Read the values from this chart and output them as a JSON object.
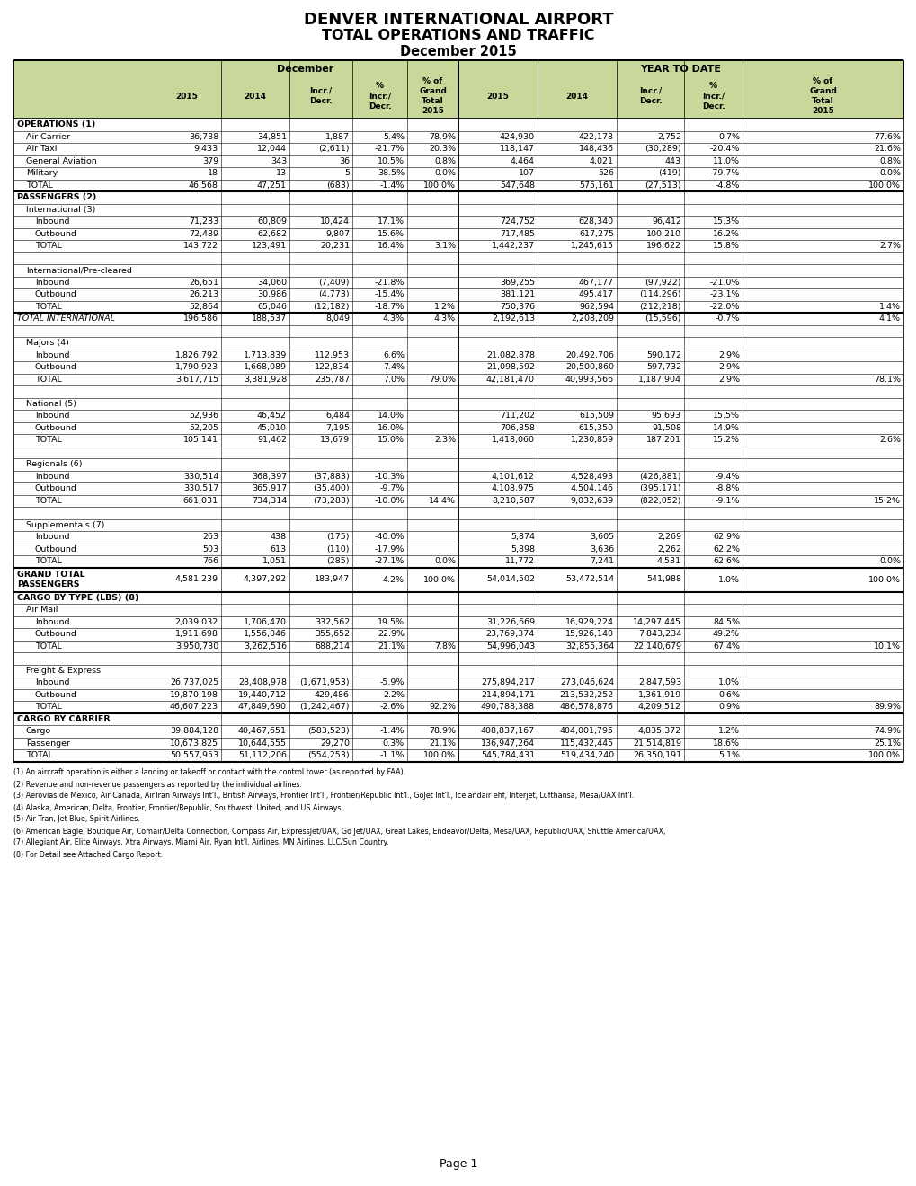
{
  "title1": "DENVER INTERNATIONAL AIRPORT",
  "title2": "TOTAL OPERATIONS AND TRAFFIC",
  "title3": "December 2015",
  "header_bg": "#c8d89a",
  "rows": [
    {
      "label": "OPERATIONS (1)",
      "indent": 0,
      "bold": true,
      "italic": false,
      "thick_above": true,
      "thick_below": false,
      "data": [
        "",
        "",
        "",
        "",
        "",
        "",
        "",
        "",
        "",
        ""
      ]
    },
    {
      "label": "Air Carrier",
      "indent": 1,
      "bold": false,
      "italic": false,
      "thick_above": false,
      "thick_below": false,
      "data": [
        "36,738",
        "34,851",
        "1,887",
        "5.4%",
        "78.9%",
        "424,930",
        "422,178",
        "2,752",
        "0.7%",
        "77.6%"
      ]
    },
    {
      "label": "Air Taxi",
      "indent": 1,
      "bold": false,
      "italic": false,
      "thick_above": false,
      "thick_below": false,
      "data": [
        "9,433",
        "12,044",
        "(2,611)",
        "-21.7%",
        "20.3%",
        "118,147",
        "148,436",
        "(30,289)",
        "-20.4%",
        "21.6%"
      ]
    },
    {
      "label": "General Aviation",
      "indent": 1,
      "bold": false,
      "italic": false,
      "thick_above": false,
      "thick_below": false,
      "data": [
        "379",
        "343",
        "36",
        "10.5%",
        "0.8%",
        "4,464",
        "4,021",
        "443",
        "11.0%",
        "0.8%"
      ]
    },
    {
      "label": "Military",
      "indent": 1,
      "bold": false,
      "italic": false,
      "thick_above": false,
      "thick_below": false,
      "data": [
        "18",
        "13",
        "5",
        "38.5%",
        "0.0%",
        "107",
        "526",
        "(419)",
        "-79.7%",
        "0.0%"
      ]
    },
    {
      "label": "TOTAL",
      "indent": 1,
      "bold": false,
      "italic": false,
      "thick_above": false,
      "thick_below": true,
      "data": [
        "46,568",
        "47,251",
        "(683)",
        "-1.4%",
        "100.0%",
        "547,648",
        "575,161",
        "(27,513)",
        "-4.8%",
        "100.0%"
      ]
    },
    {
      "label": "PASSENGERS (2)",
      "indent": 0,
      "bold": true,
      "italic": false,
      "thick_above": false,
      "thick_below": false,
      "data": [
        "",
        "",
        "",
        "",
        "",
        "",
        "",
        "",
        "",
        ""
      ]
    },
    {
      "label": "International (3)",
      "indent": 1,
      "bold": false,
      "italic": false,
      "thick_above": false,
      "thick_below": false,
      "data": [
        "",
        "",
        "",
        "",
        "",
        "",
        "",
        "",
        "",
        ""
      ]
    },
    {
      "label": "Inbound",
      "indent": 2,
      "bold": false,
      "italic": false,
      "thick_above": false,
      "thick_below": false,
      "data": [
        "71,233",
        "60,809",
        "10,424",
        "17.1%",
        "",
        "724,752",
        "628,340",
        "96,412",
        "15.3%",
        ""
      ]
    },
    {
      "label": "Outbound",
      "indent": 2,
      "bold": false,
      "italic": false,
      "thick_above": false,
      "thick_below": false,
      "data": [
        "72,489",
        "62,682",
        "9,807",
        "15.6%",
        "",
        "717,485",
        "617,275",
        "100,210",
        "16.2%",
        ""
      ]
    },
    {
      "label": "TOTAL",
      "indent": 2,
      "bold": false,
      "italic": false,
      "thick_above": false,
      "thick_below": false,
      "data": [
        "143,722",
        "123,491",
        "20,231",
        "16.4%",
        "3.1%",
        "1,442,237",
        "1,245,615",
        "196,622",
        "15.8%",
        "2.7%"
      ]
    },
    {
      "label": "",
      "indent": 0,
      "bold": false,
      "italic": false,
      "thick_above": false,
      "thick_below": false,
      "data": [
        "",
        "",
        "",
        "",
        "",
        "",
        "",
        "",
        "",
        ""
      ]
    },
    {
      "label": "International/Pre-cleared",
      "indent": 1,
      "bold": false,
      "italic": false,
      "thick_above": false,
      "thick_below": false,
      "data": [
        "",
        "",
        "",
        "",
        "",
        "",
        "",
        "",
        "",
        ""
      ]
    },
    {
      "label": "Inbound",
      "indent": 2,
      "bold": false,
      "italic": false,
      "thick_above": false,
      "thick_below": false,
      "data": [
        "26,651",
        "34,060",
        "(7,409)",
        "-21.8%",
        "",
        "369,255",
        "467,177",
        "(97,922)",
        "-21.0%",
        ""
      ]
    },
    {
      "label": "Outbound",
      "indent": 2,
      "bold": false,
      "italic": false,
      "thick_above": false,
      "thick_below": false,
      "data": [
        "26,213",
        "30,986",
        "(4,773)",
        "-15.4%",
        "",
        "381,121",
        "495,417",
        "(114,296)",
        "-23.1%",
        ""
      ]
    },
    {
      "label": "TOTAL",
      "indent": 2,
      "bold": false,
      "italic": false,
      "thick_above": false,
      "thick_below": true,
      "data": [
        "52,864",
        "65,046",
        "(12,182)",
        "-18.7%",
        "1.2%",
        "750,376",
        "962,594",
        "(212,218)",
        "-22.0%",
        "1.4%"
      ]
    },
    {
      "label": "TOTAL INTERNATIONAL",
      "indent": 0,
      "bold": false,
      "italic": true,
      "thick_above": false,
      "thick_below": false,
      "data": [
        "196,586",
        "188,537",
        "8,049",
        "4.3%",
        "4.3%",
        "2,192,613",
        "2,208,209",
        "(15,596)",
        "-0.7%",
        "4.1%"
      ]
    },
    {
      "label": "",
      "indent": 0,
      "bold": false,
      "italic": false,
      "thick_above": false,
      "thick_below": false,
      "data": [
        "",
        "",
        "",
        "",
        "",
        "",
        "",
        "",
        "",
        ""
      ]
    },
    {
      "label": "Majors (4)",
      "indent": 1,
      "bold": false,
      "italic": false,
      "thick_above": false,
      "thick_below": false,
      "data": [
        "",
        "",
        "",
        "",
        "",
        "",
        "",
        "",
        "",
        ""
      ]
    },
    {
      "label": "Inbound",
      "indent": 2,
      "bold": false,
      "italic": false,
      "thick_above": false,
      "thick_below": false,
      "data": [
        "1,826,792",
        "1,713,839",
        "112,953",
        "6.6%",
        "",
        "21,082,878",
        "20,492,706",
        "590,172",
        "2.9%",
        ""
      ]
    },
    {
      "label": "Outbound",
      "indent": 2,
      "bold": false,
      "italic": false,
      "thick_above": false,
      "thick_below": false,
      "data": [
        "1,790,923",
        "1,668,089",
        "122,834",
        "7.4%",
        "",
        "21,098,592",
        "20,500,860",
        "597,732",
        "2.9%",
        ""
      ]
    },
    {
      "label": "TOTAL",
      "indent": 2,
      "bold": false,
      "italic": false,
      "thick_above": false,
      "thick_below": false,
      "data": [
        "3,617,715",
        "3,381,928",
        "235,787",
        "7.0%",
        "79.0%",
        "42,181,470",
        "40,993,566",
        "1,187,904",
        "2.9%",
        "78.1%"
      ]
    },
    {
      "label": "",
      "indent": 0,
      "bold": false,
      "italic": false,
      "thick_above": false,
      "thick_below": false,
      "data": [
        "",
        "",
        "",
        "",
        "",
        "",
        "",
        "",
        "",
        ""
      ]
    },
    {
      "label": "National (5)",
      "indent": 1,
      "bold": false,
      "italic": false,
      "thick_above": false,
      "thick_below": false,
      "data": [
        "",
        "",
        "",
        "",
        "",
        "",
        "",
        "",
        "",
        ""
      ]
    },
    {
      "label": "Inbound",
      "indent": 2,
      "bold": false,
      "italic": false,
      "thick_above": false,
      "thick_below": false,
      "data": [
        "52,936",
        "46,452",
        "6,484",
        "14.0%",
        "",
        "711,202",
        "615,509",
        "95,693",
        "15.5%",
        ""
      ]
    },
    {
      "label": "Outbound",
      "indent": 2,
      "bold": false,
      "italic": false,
      "thick_above": false,
      "thick_below": false,
      "data": [
        "52,205",
        "45,010",
        "7,195",
        "16.0%",
        "",
        "706,858",
        "615,350",
        "91,508",
        "14.9%",
        ""
      ]
    },
    {
      "label": "TOTAL",
      "indent": 2,
      "bold": false,
      "italic": false,
      "thick_above": false,
      "thick_below": false,
      "data": [
        "105,141",
        "91,462",
        "13,679",
        "15.0%",
        "2.3%",
        "1,418,060",
        "1,230,859",
        "187,201",
        "15.2%",
        "2.6%"
      ]
    },
    {
      "label": "",
      "indent": 0,
      "bold": false,
      "italic": false,
      "thick_above": false,
      "thick_below": false,
      "data": [
        "",
        "",
        "",
        "",
        "",
        "",
        "",
        "",
        "",
        ""
      ]
    },
    {
      "label": "Regionals (6)",
      "indent": 1,
      "bold": false,
      "italic": false,
      "thick_above": false,
      "thick_below": false,
      "data": [
        "",
        "",
        "",
        "",
        "",
        "",
        "",
        "",
        "",
        ""
      ]
    },
    {
      "label": "Inbound",
      "indent": 2,
      "bold": false,
      "italic": false,
      "thick_above": false,
      "thick_below": false,
      "data": [
        "330,514",
        "368,397",
        "(37,883)",
        "-10.3%",
        "",
        "4,101,612",
        "4,528,493",
        "(426,881)",
        "-9.4%",
        ""
      ]
    },
    {
      "label": "Outbound",
      "indent": 2,
      "bold": false,
      "italic": false,
      "thick_above": false,
      "thick_below": false,
      "data": [
        "330,517",
        "365,917",
        "(35,400)",
        "-9.7%",
        "",
        "4,108,975",
        "4,504,146",
        "(395,171)",
        "-8.8%",
        ""
      ]
    },
    {
      "label": "TOTAL",
      "indent": 2,
      "bold": false,
      "italic": false,
      "thick_above": false,
      "thick_below": false,
      "data": [
        "661,031",
        "734,314",
        "(73,283)",
        "-10.0%",
        "14.4%",
        "8,210,587",
        "9,032,639",
        "(822,052)",
        "-9.1%",
        "15.2%"
      ]
    },
    {
      "label": "",
      "indent": 0,
      "bold": false,
      "italic": false,
      "thick_above": false,
      "thick_below": false,
      "data": [
        "",
        "",
        "",
        "",
        "",
        "",
        "",
        "",
        "",
        ""
      ]
    },
    {
      "label": "Supplementals (7)",
      "indent": 1,
      "bold": false,
      "italic": false,
      "thick_above": false,
      "thick_below": false,
      "data": [
        "",
        "",
        "",
        "",
        "",
        "",
        "",
        "",
        "",
        ""
      ]
    },
    {
      "label": "Inbound",
      "indent": 2,
      "bold": false,
      "italic": false,
      "thick_above": false,
      "thick_below": false,
      "data": [
        "263",
        "438",
        "(175)",
        "-40.0%",
        "",
        "5,874",
        "3,605",
        "2,269",
        "62.9%",
        ""
      ]
    },
    {
      "label": "Outbound",
      "indent": 2,
      "bold": false,
      "italic": false,
      "thick_above": false,
      "thick_below": false,
      "data": [
        "503",
        "613",
        "(110)",
        "-17.9%",
        "",
        "5,898",
        "3,636",
        "2,262",
        "62.2%",
        ""
      ]
    },
    {
      "label": "TOTAL",
      "indent": 2,
      "bold": false,
      "italic": false,
      "thick_above": false,
      "thick_below": true,
      "data": [
        "766",
        "1,051",
        "(285)",
        "-27.1%",
        "0.0%",
        "11,772",
        "7,241",
        "4,531",
        "62.6%",
        "0.0%"
      ]
    },
    {
      "label": "GRAND TOTAL\nPASSENGERS",
      "indent": 0,
      "bold": true,
      "italic": false,
      "thick_above": false,
      "thick_below": true,
      "data": [
        "4,581,239",
        "4,397,292",
        "183,947",
        "4.2%",
        "100.0%",
        "54,014,502",
        "53,472,514",
        "541,988",
        "1.0%",
        "100.0%"
      ]
    },
    {
      "label": "CARGO BY TYPE (LBS) (8)",
      "indent": 0,
      "bold": true,
      "italic": false,
      "thick_above": false,
      "thick_below": false,
      "data": [
        "",
        "",
        "",
        "",
        "",
        "",
        "",
        "",
        "",
        ""
      ]
    },
    {
      "label": "Air Mail",
      "indent": 1,
      "bold": false,
      "italic": false,
      "thick_above": false,
      "thick_below": false,
      "data": [
        "",
        "",
        "",
        "",
        "",
        "",
        "",
        "",
        "",
        ""
      ]
    },
    {
      "label": "Inbound",
      "indent": 2,
      "bold": false,
      "italic": false,
      "thick_above": false,
      "thick_below": false,
      "data": [
        "2,039,032",
        "1,706,470",
        "332,562",
        "19.5%",
        "",
        "31,226,669",
        "16,929,224",
        "14,297,445",
        "84.5%",
        ""
      ]
    },
    {
      "label": "Outbound",
      "indent": 2,
      "bold": false,
      "italic": false,
      "thick_above": false,
      "thick_below": false,
      "data": [
        "1,911,698",
        "1,556,046",
        "355,652",
        "22.9%",
        "",
        "23,769,374",
        "15,926,140",
        "7,843,234",
        "49.2%",
        ""
      ]
    },
    {
      "label": "TOTAL",
      "indent": 2,
      "bold": false,
      "italic": false,
      "thick_above": false,
      "thick_below": false,
      "data": [
        "3,950,730",
        "3,262,516",
        "688,214",
        "21.1%",
        "7.8%",
        "54,996,043",
        "32,855,364",
        "22,140,679",
        "67.4%",
        "10.1%"
      ]
    },
    {
      "label": "",
      "indent": 0,
      "bold": false,
      "italic": false,
      "thick_above": false,
      "thick_below": false,
      "data": [
        "",
        "",
        "",
        "",
        "",
        "",
        "",
        "",
        "",
        ""
      ]
    },
    {
      "label": "Freight & Express",
      "indent": 1,
      "bold": false,
      "italic": false,
      "thick_above": false,
      "thick_below": false,
      "data": [
        "",
        "",
        "",
        "",
        "",
        "",
        "",
        "",
        "",
        ""
      ]
    },
    {
      "label": "Inbound",
      "indent": 2,
      "bold": false,
      "italic": false,
      "thick_above": false,
      "thick_below": false,
      "data": [
        "26,737,025",
        "28,408,978",
        "(1,671,953)",
        "-5.9%",
        "",
        "275,894,217",
        "273,046,624",
        "2,847,593",
        "1.0%",
        ""
      ]
    },
    {
      "label": "Outbound",
      "indent": 2,
      "bold": false,
      "italic": false,
      "thick_above": false,
      "thick_below": false,
      "data": [
        "19,870,198",
        "19,440,712",
        "429,486",
        "2.2%",
        "",
        "214,894,171",
        "213,532,252",
        "1,361,919",
        "0.6%",
        ""
      ]
    },
    {
      "label": "TOTAL",
      "indent": 2,
      "bold": false,
      "italic": false,
      "thick_above": false,
      "thick_below": true,
      "data": [
        "46,607,223",
        "47,849,690",
        "(1,242,467)",
        "-2.6%",
        "92.2%",
        "490,788,388",
        "486,578,876",
        "4,209,512",
        "0.9%",
        "89.9%"
      ]
    },
    {
      "label": "CARGO BY CARRIER",
      "indent": 0,
      "bold": true,
      "italic": false,
      "thick_above": false,
      "thick_below": false,
      "data": [
        "",
        "",
        "",
        "",
        "",
        "",
        "",
        "",
        "",
        ""
      ]
    },
    {
      "label": "Cargo",
      "indent": 1,
      "bold": false,
      "italic": false,
      "thick_above": false,
      "thick_below": false,
      "data": [
        "39,884,128",
        "40,467,651",
        "(583,523)",
        "-1.4%",
        "78.9%",
        "408,837,167",
        "404,001,795",
        "4,835,372",
        "1.2%",
        "74.9%"
      ]
    },
    {
      "label": "Passenger",
      "indent": 1,
      "bold": false,
      "italic": false,
      "thick_above": false,
      "thick_below": false,
      "data": [
        "10,673,825",
        "10,644,555",
        "29,270",
        "0.3%",
        "21.1%",
        "136,947,264",
        "115,432,445",
        "21,514,819",
        "18.6%",
        "25.1%"
      ]
    },
    {
      "label": "TOTAL",
      "indent": 1,
      "bold": false,
      "italic": false,
      "thick_above": false,
      "thick_below": true,
      "data": [
        "50,557,953",
        "51,112,206",
        "(554,253)",
        "-1.1%",
        "100.0%",
        "545,784,431",
        "519,434,240",
        "26,350,191",
        "5.1%",
        "100.0%"
      ]
    }
  ],
  "footnotes": [
    "(1) An aircraft operation is either a landing or takeoff or contact with the control tower (as reported by FAA).",
    "(2) Revenue and non-revenue passengers as reported by the individual airlines.",
    "(3) Aerovias de Mexico, Air Canada, AirTran Airways Int'l., British Airways, Frontier Int'l., Frontier/Republic Int'l., GoJet Int'l., Icelandair ehf, Interjet, Lufthansa, Mesa/UAX Int'l.",
    "(4) Alaska, American, Delta, Frontier, Frontier/Republic, Southwest, United, and US Airways.",
    "(5) Air Tran, Jet Blue, Spirit Airlines.",
    "(6) American Eagle, Boutique Air, Comair/Delta Connection, Compass Air, ExpressJet/UAX, Go Jet/UAX, Great Lakes, Endeavor/Delta, Mesa/UAX, Republic/UAX, Shuttle America/UAX,",
    "(7) Allegiant Air, Elite Airways, Xtra Airways, Miami Air, Ryan Int'l. Airlines, MN Airlines, LLC/Sun Country.",
    "(8) For Detail see Attached Cargo Report."
  ],
  "page_label": "Page 1"
}
